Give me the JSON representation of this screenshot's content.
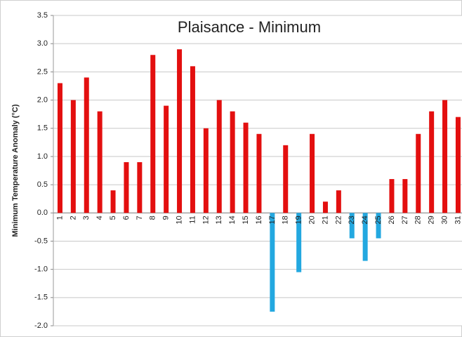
{
  "chart_data": {
    "type": "bar",
    "title": "Plaisance - Minimum",
    "y_label": "Minimum Temperature Anomaly (°C)",
    "categories": [
      "1",
      "2",
      "3",
      "4",
      "5",
      "6",
      "7",
      "8",
      "9",
      "10",
      "11",
      "12",
      "13",
      "14",
      "15",
      "16",
      "17",
      "18",
      "19",
      "20",
      "21",
      "22",
      "23",
      "24",
      "25",
      "26",
      "27",
      "28",
      "29",
      "30",
      "31"
    ],
    "values": [
      2.3,
      2.0,
      2.4,
      1.8,
      0.4,
      0.9,
      0.9,
      2.8,
      1.9,
      2.9,
      2.6,
      1.5,
      2.0,
      1.8,
      1.6,
      1.4,
      -1.75,
      1.2,
      -1.05,
      1.4,
      0.2,
      0.4,
      -0.45,
      -0.85,
      -0.45,
      0.6,
      0.6,
      1.4,
      1.8,
      2.0,
      1.7
    ],
    "color": "#e30f0f",
    "negative_color": "#23a8e0",
    "ylim": [
      -2.0,
      3.5
    ],
    "yticks": [
      {
        "value": -2.0,
        "label": "-2.0"
      },
      -1.5,
      {
        "value": -1.0,
        "label": "-1.0"
      },
      -0.5,
      {
        "value": 0,
        "label": "0.0"
      },
      0.5,
      {
        "value": 1.0,
        "label": "1.0"
      },
      1.5,
      {
        "value": 2.0,
        "label": "2.0"
      },
      2.5,
      {
        "value": 3.0,
        "label": "3.0"
      },
      3.5
    ],
    "grid": true
  }
}
